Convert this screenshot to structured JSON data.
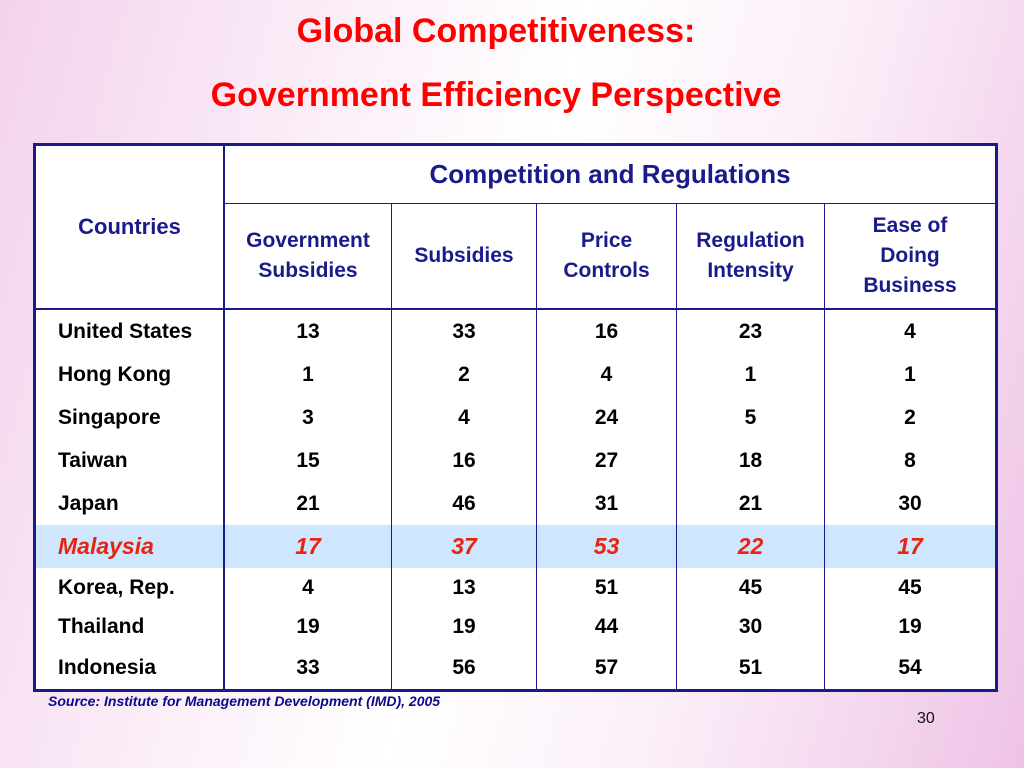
{
  "slide": {
    "title_line1": "Global Competitiveness:",
    "title_line2": "Government Efficiency Perspective",
    "source": "Source: Institute for Management Development (IMD), 2005",
    "page_number": "30"
  },
  "table": {
    "countries_header": "Countries",
    "group_header": "Competition and Regulations",
    "columns": [
      [
        "Government",
        "Subsidies"
      ],
      [
        "Subsidies"
      ],
      [
        "Price",
        "Controls"
      ],
      [
        "Regulation",
        "Intensity"
      ],
      [
        "Ease of",
        "Doing",
        "Business"
      ]
    ],
    "rows": [
      {
        "country": "United States",
        "values": [
          "13",
          "33",
          "16",
          "23",
          "4"
        ]
      },
      {
        "country": "Hong Kong",
        "values": [
          "1",
          "2",
          "4",
          "1",
          "1"
        ]
      },
      {
        "country": "Singapore",
        "values": [
          "3",
          "4",
          "24",
          "5",
          "2"
        ]
      },
      {
        "country": "Taiwan",
        "values": [
          "15",
          "16",
          "27",
          "18",
          "8"
        ]
      },
      {
        "country": "Japan",
        "values": [
          "21",
          "46",
          "31",
          "21",
          "30"
        ]
      },
      {
        "country": "Malaysia",
        "values": [
          "17",
          "37",
          "53",
          "22",
          "17"
        ]
      },
      {
        "country": "Korea, Rep.",
        "values": [
          "4",
          "13",
          "51",
          "45",
          "45"
        ]
      },
      {
        "country": "Thailand",
        "values": [
          "19",
          "19",
          "44",
          "30",
          "19"
        ]
      },
      {
        "country": "Indonesia",
        "values": [
          "33",
          "56",
          "57",
          "51",
          "54"
        ]
      }
    ]
  },
  "colors": {
    "title": "#ff0000",
    "table_border": "#1a1a8a",
    "highlight_row_bg": "#cfe6ff",
    "highlight_row_text": "#e8230f"
  }
}
